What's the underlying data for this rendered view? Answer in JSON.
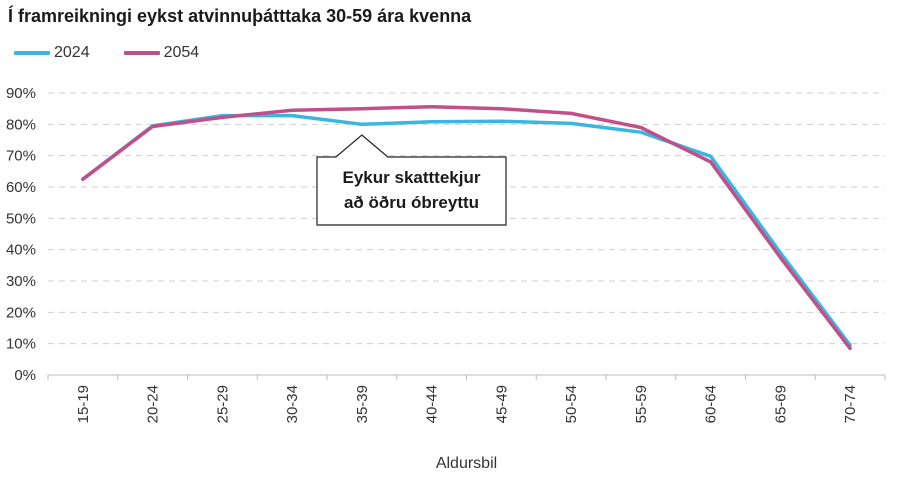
{
  "chart_data": {
    "type": "line",
    "title": "Í framreikningi eykst atvinnuþátttaka 30-59 ára kvenna",
    "xlabel": "Aldursbil",
    "ylabel": "",
    "categories": [
      "15-19",
      "20-24",
      "25-29",
      "30-34",
      "35-39",
      "40-44",
      "45-49",
      "50-54",
      "55-59",
      "60-64",
      "65-69",
      "70-74"
    ],
    "ylim": [
      0,
      90
    ],
    "yticks": [
      "0%",
      "10%",
      "20%",
      "30%",
      "40%",
      "50%",
      "60%",
      "70%",
      "80%",
      "90%"
    ],
    "grid": true,
    "legend_position": "top-left",
    "series": [
      {
        "name": "2024",
        "color": "#3bb6e0",
        "values": [
          62.5,
          79.5,
          82.8,
          82.8,
          80.0,
          80.8,
          81.0,
          80.3,
          77.5,
          69.8,
          39.0,
          9.5
        ]
      },
      {
        "name": "2054",
        "color": "#c0508a",
        "values": [
          62.5,
          79.3,
          82.2,
          84.5,
          85.0,
          85.6,
          85.0,
          83.5,
          79.0,
          68.0,
          37.5,
          8.5
        ]
      }
    ],
    "annotation": {
      "lines": [
        "Eykur skatttekjur",
        "að öðru óbreyttu"
      ],
      "category": "35-39"
    }
  }
}
